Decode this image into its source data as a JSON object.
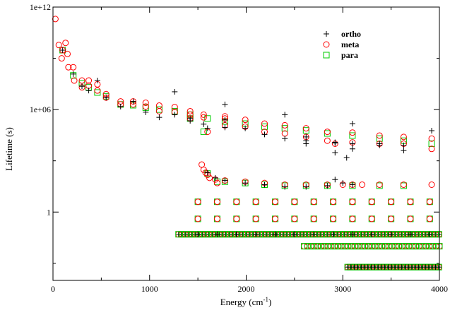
{
  "chart_data": {
    "type": "scatter",
    "xlabel": "Energy (cm",
    "xlabel_sup": "-1",
    "xlabel_tail": ")",
    "ylabel": "Lifetime (s)",
    "x_scale": "linear",
    "y_scale": "log",
    "xlim": [
      0,
      4000
    ],
    "ylim": [
      0.0001,
      1000000000000.0
    ],
    "x_ticks": [
      0,
      1000,
      2000,
      3000,
      4000
    ],
    "x_tick_labels": [
      "0",
      "1000",
      "2000",
      "3000",
      "4000"
    ],
    "y_ticks": [
      1,
      1000000.0,
      1000000000000.0
    ],
    "y_tick_labels": [
      "1",
      "1e+06",
      "1e+12"
    ],
    "legend_position": "top-right",
    "grid": false,
    "series": [
      {
        "name": "ortho",
        "marker": "plus",
        "color": "#000000",
        "points": [
          [
            100,
            3000000000.0
          ],
          [
            210,
            120000000.0
          ],
          [
            300,
            23000000.0
          ],
          [
            370,
            13000000.0
          ],
          [
            460,
            50000000.0
          ],
          [
            550,
            5000000.0
          ],
          [
            700,
            1500000.0
          ],
          [
            830,
            3000000.0
          ],
          [
            960,
            700000.0
          ],
          [
            1100,
            350000.0
          ],
          [
            1260,
            11000000.0
          ],
          [
            1260,
            500000.0
          ],
          [
            1420,
            220000.0
          ],
          [
            1420,
            300000.0
          ],
          [
            1560,
            140000.0
          ],
          [
            1600,
            80000.0
          ],
          [
            1780,
            2000000.0
          ],
          [
            1780,
            250000.0
          ],
          [
            1780,
            90000.0
          ],
          [
            1990,
            80000.0
          ],
          [
            2190,
            35000.0
          ],
          [
            2400,
            500000.0
          ],
          [
            2400,
            20000.0
          ],
          [
            2620,
            25000.0
          ],
          [
            2620,
            15000.0
          ],
          [
            2620,
            10000.0
          ],
          [
            2920,
            11000.0
          ],
          [
            2920,
            12000.0
          ],
          [
            2920,
            3000.0
          ],
          [
            3040,
            1500.0
          ],
          [
            3100,
            150000.0
          ],
          [
            3100,
            10000.0
          ],
          [
            3100,
            5000.0
          ],
          [
            3380,
            8000.0
          ],
          [
            3380,
            10000.0
          ],
          [
            3630,
            4000.0
          ],
          [
            3630,
            8000.0
          ],
          [
            3920,
            58000.0
          ],
          [
            1600,
            200
          ],
          [
            1680,
            100
          ],
          [
            1780,
            70
          ],
          [
            1990,
            50
          ],
          [
            2190,
            40
          ],
          [
            2400,
            30
          ],
          [
            2620,
            30
          ],
          [
            2840,
            35
          ],
          [
            2920,
            80
          ],
          [
            3000,
            50
          ],
          [
            3100,
            40
          ],
          [
            1500,
            0.05
          ],
          [
            1700,
            0.05
          ],
          [
            1900,
            0.05
          ],
          [
            2100,
            0.05
          ],
          [
            2300,
            0.05
          ],
          [
            2500,
            0.05
          ],
          [
            2700,
            0.05
          ],
          [
            2900,
            0.05
          ],
          [
            3100,
            0.05
          ],
          [
            3300,
            0.05
          ],
          [
            3500,
            0.05
          ],
          [
            3700,
            0.05
          ],
          [
            3900,
            0.05
          ]
        ]
      },
      {
        "name": "meta",
        "marker": "circle",
        "color": "#ff0000",
        "points": [
          [
            25,
            200000000000.0
          ],
          [
            60,
            6000000000.0
          ],
          [
            90,
            1000000000.0
          ],
          [
            100,
            3000000000.0
          ],
          [
            130,
            8000000000.0
          ],
          [
            150,
            1800000000.0
          ],
          [
            160,
            300000000.0
          ],
          [
            210,
            300000000.0
          ],
          [
            220,
            50000000.0
          ],
          [
            300,
            20000000.0
          ],
          [
            300,
            50000000.0
          ],
          [
            370,
            25000000.0
          ],
          [
            370,
            50000000.0
          ],
          [
            460,
            13000000.0
          ],
          [
            460,
            30000000.0
          ],
          [
            550,
            8000000.0
          ],
          [
            550,
            5000000.0
          ],
          [
            700,
            3000000.0
          ],
          [
            700,
            2000000.0
          ],
          [
            830,
            3000000.0
          ],
          [
            830,
            2000000.0
          ],
          [
            960,
            2500000.0
          ],
          [
            960,
            1500000.0
          ],
          [
            1100,
            1700000.0
          ],
          [
            1100,
            800000.0
          ],
          [
            1260,
            1400000.0
          ],
          [
            1260,
            700000.0
          ],
          [
            1420,
            800000.0
          ],
          [
            1420,
            500000.0
          ],
          [
            1420,
            300000.0
          ],
          [
            1560,
            500000.0
          ],
          [
            1560,
            350000.0
          ],
          [
            1600,
            50000.0
          ],
          [
            1780,
            400000.0
          ],
          [
            1780,
            300000.0
          ],
          [
            1780,
            120000.0
          ],
          [
            1990,
            250000.0
          ],
          [
            1990,
            100000.0
          ],
          [
            2190,
            150000.0
          ],
          [
            2190,
            50000.0
          ],
          [
            2400,
            120000.0
          ],
          [
            2400,
            40000.0
          ],
          [
            2620,
            80000.0
          ],
          [
            2620,
            25000.0
          ],
          [
            2840,
            50000.0
          ],
          [
            2840,
            15000.0
          ],
          [
            2920,
            10000.0
          ],
          [
            3100,
            45000.0
          ],
          [
            3100,
            12000.0
          ],
          [
            3380,
            30000.0
          ],
          [
            3380,
            10000.0
          ],
          [
            3630,
            25000.0
          ],
          [
            3630,
            10000.0
          ],
          [
            3920,
            20000.0
          ],
          [
            3920,
            5000.0
          ],
          [
            1540,
            600
          ],
          [
            1560,
            300
          ],
          [
            1580,
            200
          ],
          [
            1600,
            150
          ],
          [
            1620,
            100
          ],
          [
            1680,
            80
          ],
          [
            1700,
            50
          ],
          [
            1780,
            70
          ],
          [
            1990,
            60
          ],
          [
            2190,
            50
          ],
          [
            2400,
            40
          ],
          [
            2620,
            40
          ],
          [
            2840,
            40
          ],
          [
            3000,
            40
          ],
          [
            3100,
            40
          ],
          [
            3200,
            40
          ],
          [
            3380,
            40
          ],
          [
            3630,
            40
          ],
          [
            3920,
            40
          ],
          [
            1500,
            4
          ],
          [
            1700,
            4
          ],
          [
            1900,
            4
          ],
          [
            2100,
            4
          ],
          [
            2300,
            4
          ],
          [
            2500,
            4
          ],
          [
            2700,
            4
          ],
          [
            2900,
            4
          ],
          [
            3100,
            4
          ],
          [
            3300,
            4
          ],
          [
            3500,
            4
          ],
          [
            3700,
            4
          ],
          [
            3900,
            4
          ],
          [
            1500,
            0.4
          ],
          [
            1700,
            0.4
          ],
          [
            1900,
            0.4
          ],
          [
            2100,
            0.4
          ],
          [
            2300,
            0.4
          ],
          [
            2500,
            0.4
          ],
          [
            2700,
            0.4
          ],
          [
            2900,
            0.4
          ],
          [
            3100,
            0.4
          ],
          [
            3300,
            0.4
          ],
          [
            3500,
            0.4
          ],
          [
            3700,
            0.4
          ],
          [
            3900,
            0.4
          ]
        ]
      },
      {
        "name": "para",
        "marker": "square",
        "color": "#00cc00",
        "points": [
          [
            100,
            3000000000.0
          ],
          [
            210,
            100000000.0
          ],
          [
            300,
            35000000.0
          ],
          [
            370,
            20000000.0
          ],
          [
            460,
            10000000.0
          ],
          [
            550,
            6000000.0
          ],
          [
            700,
            2000000.0
          ],
          [
            830,
            1800000.0
          ],
          [
            960,
            1300000.0
          ],
          [
            1100,
            1000000.0
          ],
          [
            1260,
            800000.0
          ],
          [
            1420,
            500000.0
          ],
          [
            1420,
            300000.0
          ],
          [
            1560,
            50000.0
          ],
          [
            1600,
            300000.0
          ],
          [
            1780,
            200000.0
          ],
          [
            1990,
            150000.0
          ],
          [
            2190,
            100000.0
          ],
          [
            2400,
            80000.0
          ],
          [
            2620,
            60000.0
          ],
          [
            2840,
            40000.0
          ],
          [
            3100,
            30000.0
          ],
          [
            3380,
            20000.0
          ],
          [
            3630,
            15000.0
          ],
          [
            3920,
            10000.0
          ],
          [
            1600,
            180
          ],
          [
            1700,
            60
          ],
          [
            1780,
            60
          ],
          [
            1990,
            50
          ],
          [
            2190,
            40
          ],
          [
            2400,
            35
          ],
          [
            2620,
            35
          ],
          [
            2840,
            35
          ],
          [
            3100,
            35
          ],
          [
            3380,
            35
          ],
          [
            3630,
            35
          ],
          [
            1500,
            4
          ],
          [
            1700,
            4
          ],
          [
            1900,
            4
          ],
          [
            2100,
            4
          ],
          [
            2300,
            4
          ],
          [
            2500,
            4
          ],
          [
            2700,
            4
          ],
          [
            2900,
            4
          ],
          [
            3100,
            4
          ],
          [
            3300,
            4
          ],
          [
            3500,
            4
          ],
          [
            3700,
            4
          ],
          [
            3900,
            4
          ],
          [
            1500,
            0.4
          ],
          [
            1700,
            0.4
          ],
          [
            1900,
            0.4
          ],
          [
            2100,
            0.4
          ],
          [
            2300,
            0.4
          ],
          [
            2500,
            0.4
          ],
          [
            2700,
            0.4
          ],
          [
            2900,
            0.4
          ],
          [
            3100,
            0.4
          ],
          [
            3300,
            0.4
          ],
          [
            3500,
            0.4
          ],
          [
            3700,
            0.4
          ],
          [
            3900,
            0.4
          ]
        ]
      }
    ],
    "dense_bands": [
      {
        "name": "ortho",
        "x_start": 1300,
        "x_end": 4000,
        "y": 0.05
      },
      {
        "name": "meta",
        "x_start": 1300,
        "x_end": 4000,
        "y": 0.05
      },
      {
        "name": "para",
        "x_start": 1300,
        "x_end": 4000,
        "y": 0.05
      },
      {
        "name": "meta",
        "x_start": 2600,
        "x_end": 4000,
        "y": 0.01
      },
      {
        "name": "para",
        "x_start": 2600,
        "x_end": 4000,
        "y": 0.01
      },
      {
        "name": "meta",
        "x_start": 3050,
        "x_end": 4000,
        "y": 0.0006
      },
      {
        "name": "para",
        "x_start": 3050,
        "x_end": 4000,
        "y": 0.0006
      },
      {
        "name": "ortho",
        "x_start": 3050,
        "x_end": 4000,
        "y": 0.0006
      }
    ]
  }
}
